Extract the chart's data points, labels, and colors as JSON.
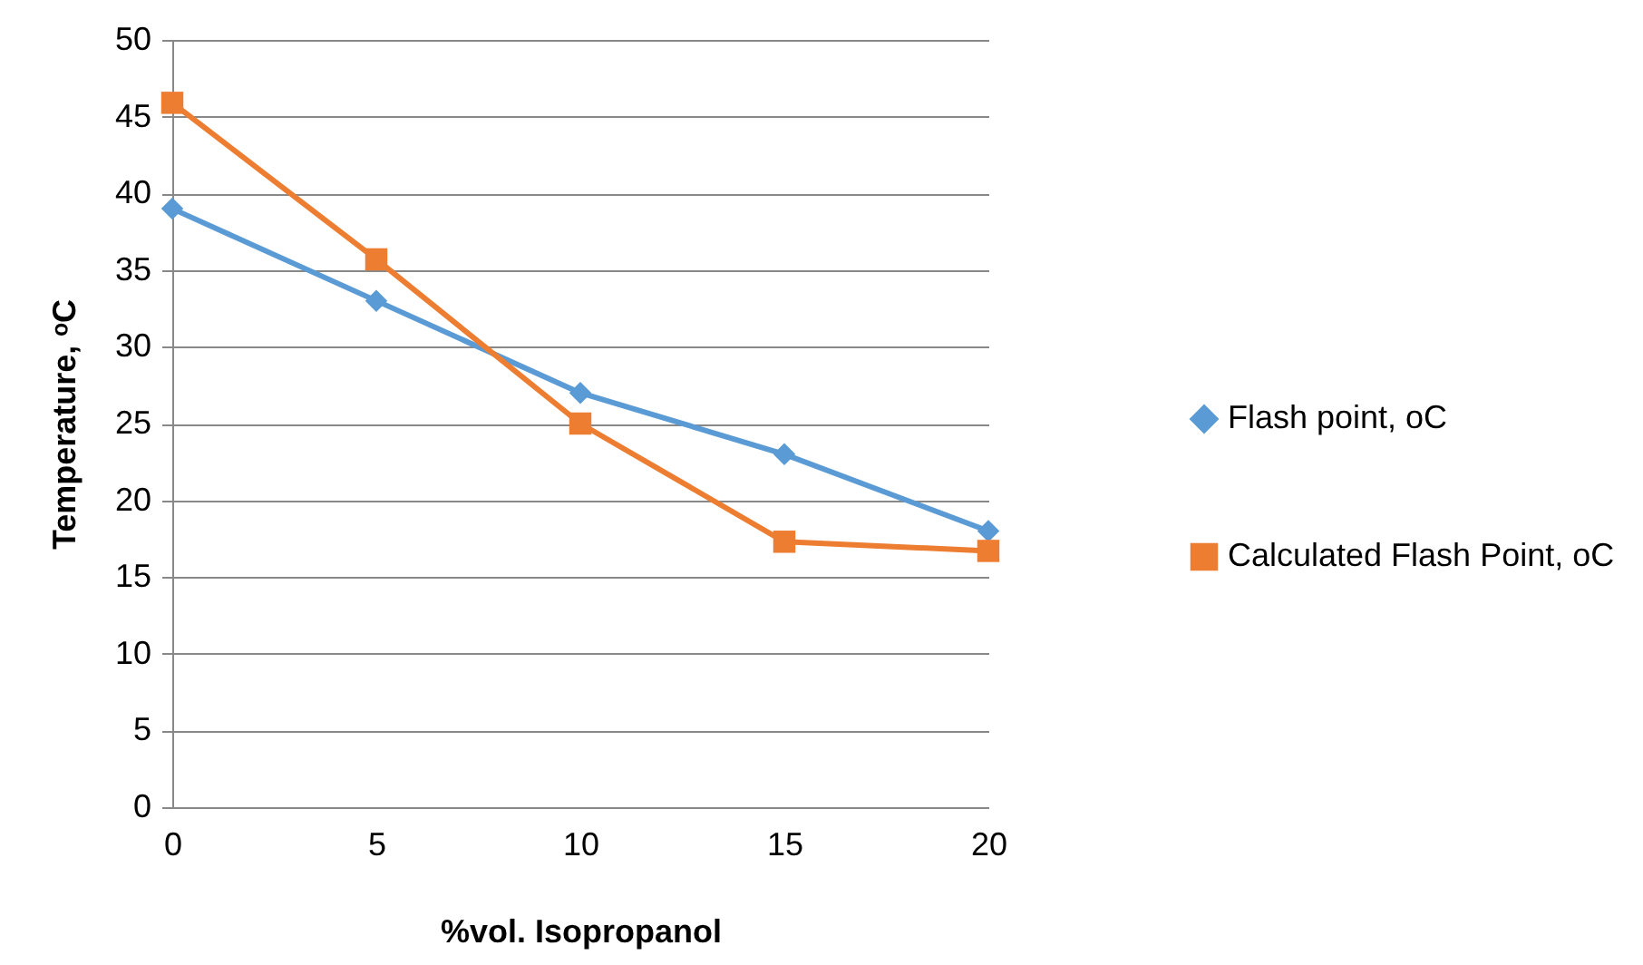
{
  "chart_data": {
    "type": "line",
    "xlabel": "%vol. Isopropanol",
    "ylabel": "Temperature, ᵒC",
    "categories": [
      "0",
      "5",
      "10",
      "15",
      "20"
    ],
    "series": [
      {
        "name": "Flash point, oC",
        "color": "#5b9bd5",
        "marker": "diamond",
        "values": [
          39,
          33,
          27,
          23,
          18
        ]
      },
      {
        "name": "Calculated Flash Point, oC",
        "color": "#ed7d31",
        "marker": "square",
        "values": [
          45.9,
          35.7,
          25,
          17.3,
          16.7
        ]
      }
    ],
    "ylim": [
      0,
      50
    ],
    "yticks": [
      0,
      5,
      10,
      15,
      20,
      25,
      30,
      35,
      40,
      45,
      50
    ],
    "grid": "y",
    "legend": "right",
    "line_style": "solid"
  }
}
